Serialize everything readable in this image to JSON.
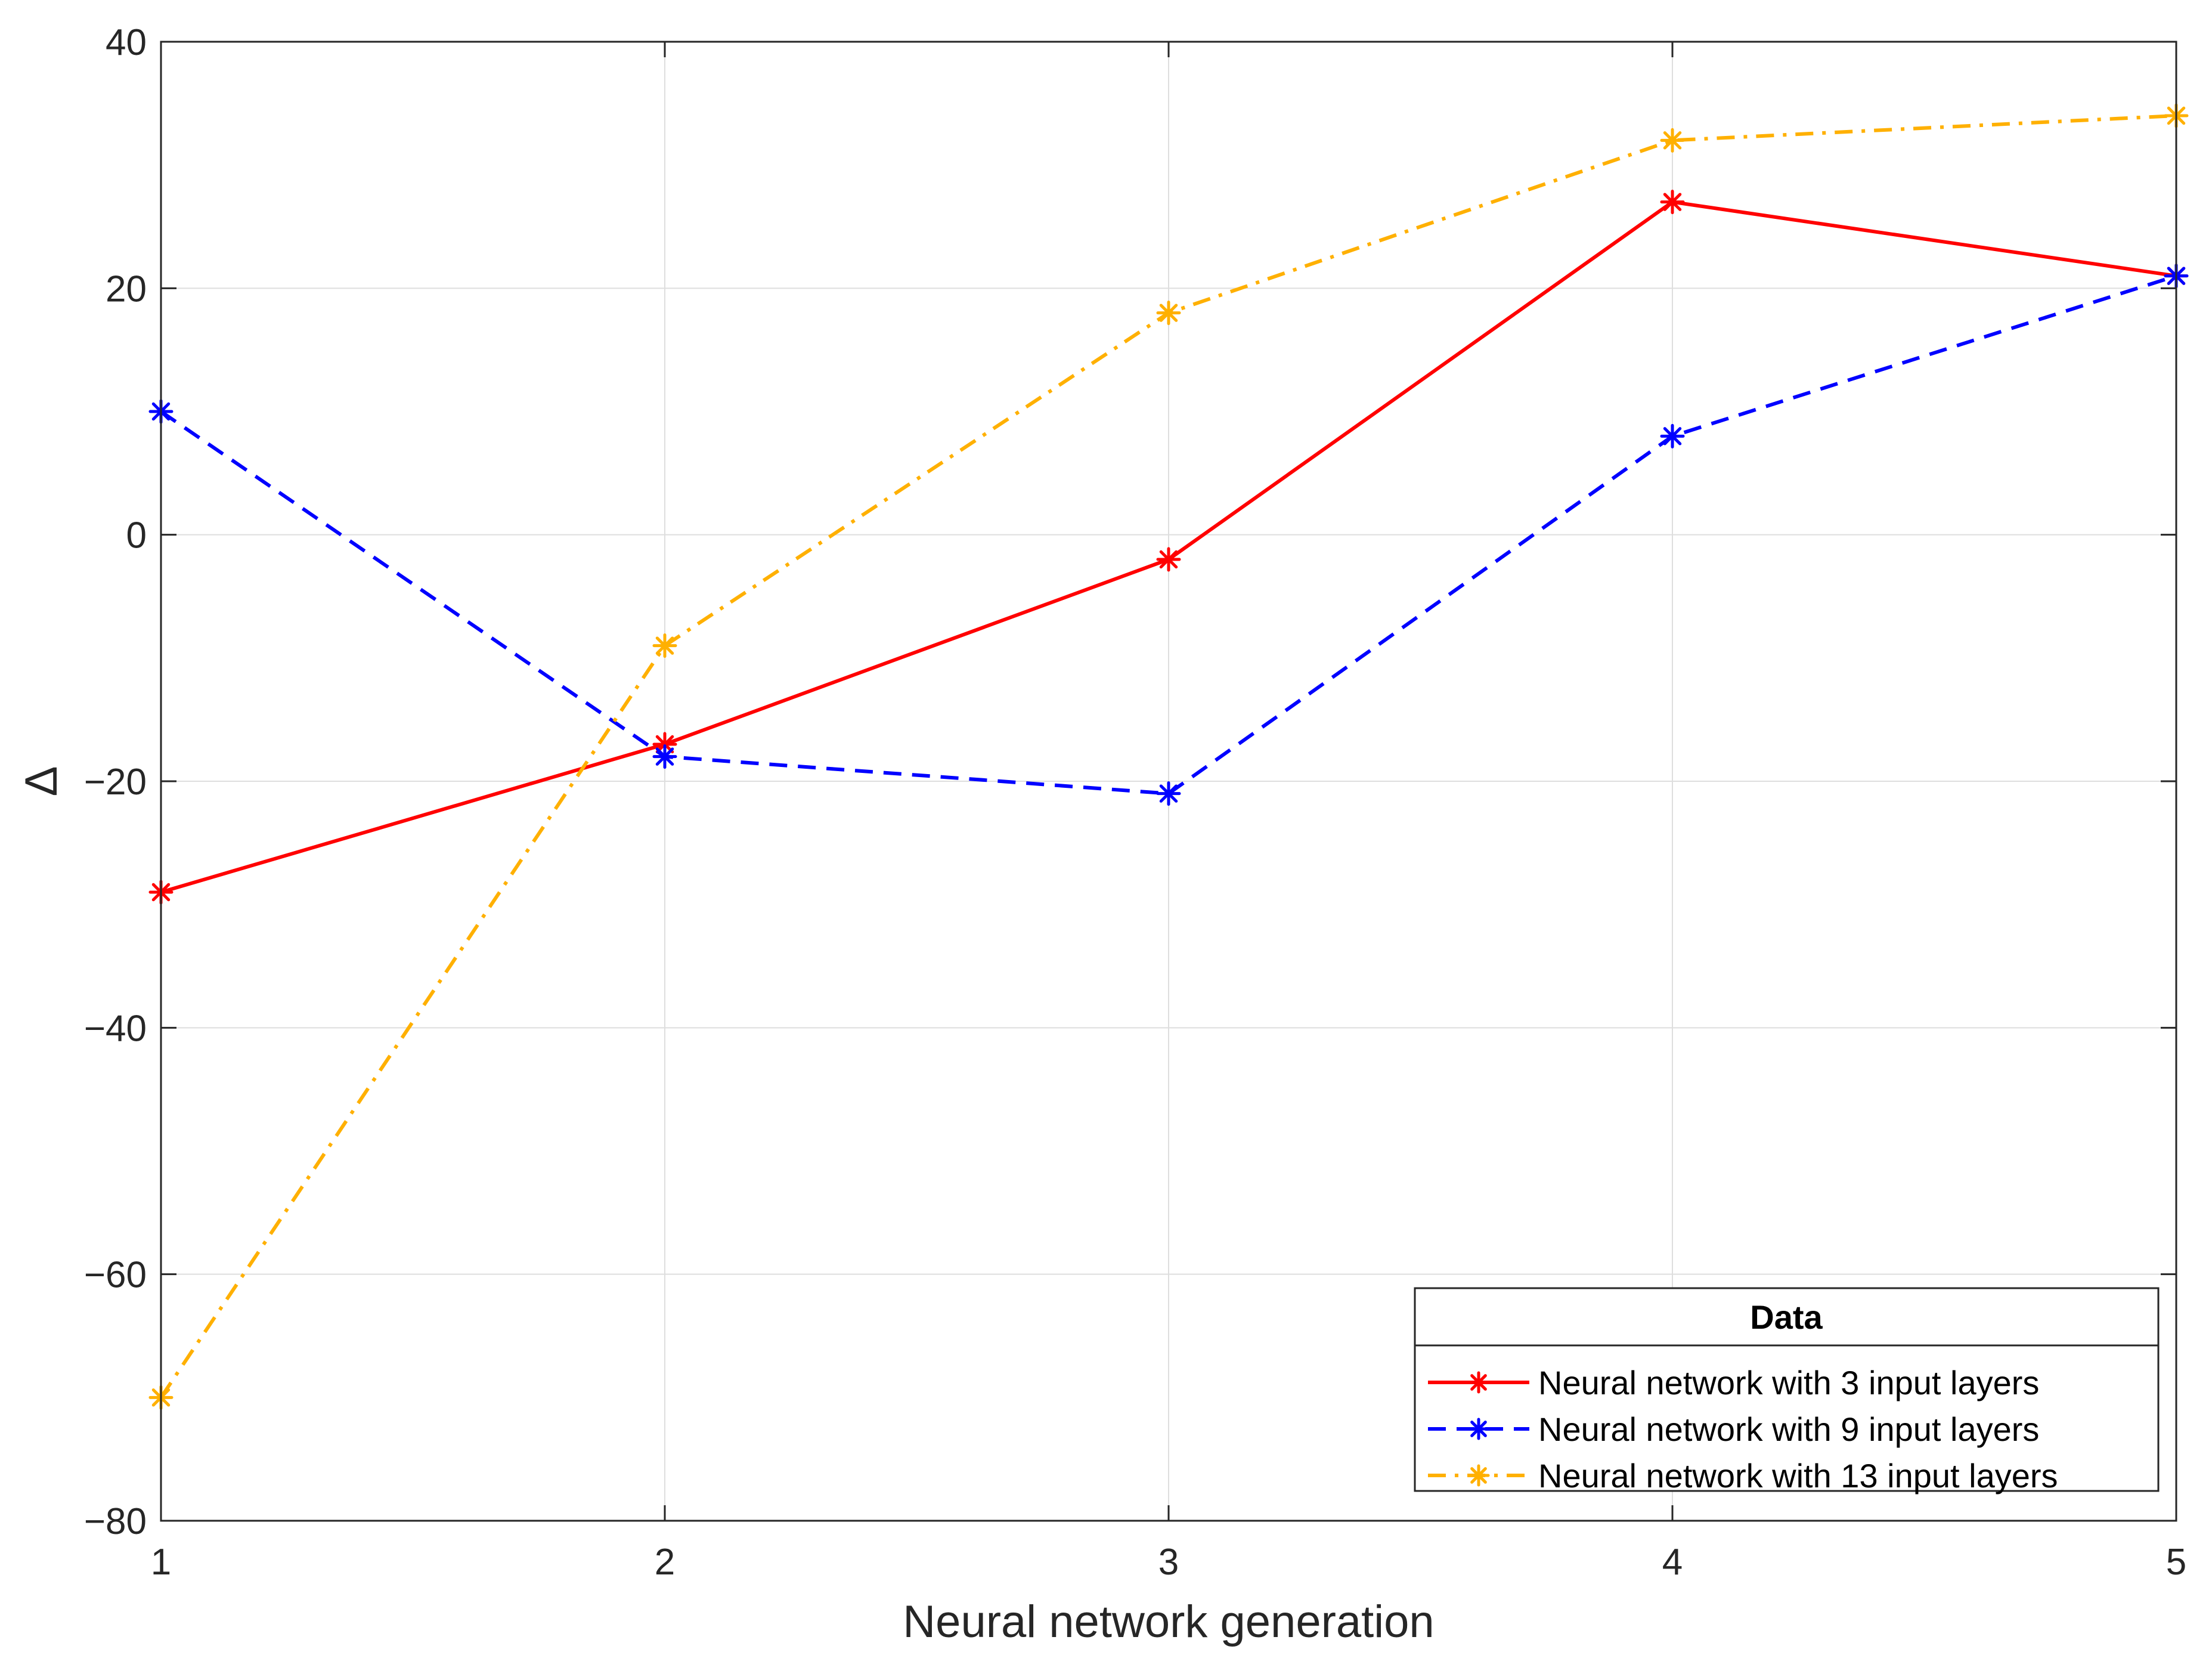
{
  "chart_data": {
    "type": "line",
    "x": [
      1,
      2,
      3,
      4,
      5
    ],
    "xlabel": "Neural network generation",
    "ylabel": "Δ",
    "xlim": [
      1,
      5
    ],
    "ylim": [
      -80,
      40
    ],
    "xticks": [
      "1",
      "2",
      "3",
      "4",
      "5"
    ],
    "yticks": [
      "40",
      "20",
      "0",
      "-20",
      "-40",
      "-60",
      "-80"
    ],
    "grid": true,
    "legend": {
      "title": "Data",
      "placement": "bottom-right"
    },
    "series": [
      {
        "name": "Neural network with 3 input layers",
        "values": [
          -29,
          -17,
          -2,
          27,
          21
        ],
        "color": "#ff0000",
        "line_style": "solid",
        "marker": "asterisk"
      },
      {
        "name": "Neural network with 9 input layers",
        "values": [
          10,
          -18,
          -21,
          8,
          21
        ],
        "color": "#0000ff",
        "line_style": "dashed",
        "marker": "asterisk"
      },
      {
        "name": "Neural network with 13 input layers",
        "values": [
          -70,
          -9,
          18,
          32,
          34
        ],
        "color": "#ffb000",
        "line_style": "dash-dot",
        "marker": "asterisk"
      }
    ]
  }
}
